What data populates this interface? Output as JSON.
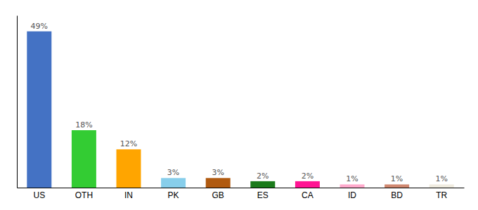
{
  "chart_data": {
    "type": "bar",
    "categories": [
      "US",
      "OTH",
      "IN",
      "PK",
      "GB",
      "ES",
      "CA",
      "ID",
      "BD",
      "TR"
    ],
    "values": [
      49,
      18,
      12,
      3,
      3,
      2,
      2,
      1,
      1,
      1
    ],
    "value_labels": [
      "49%",
      "18%",
      "12%",
      "3%",
      "3%",
      "2%",
      "2%",
      "1%",
      "1%",
      "1%"
    ],
    "colors": [
      "#4472c4",
      "#33cc33",
      "#ffa500",
      "#87ceeb",
      "#b05a10",
      "#1a7a1a",
      "#ff1493",
      "#ffaacc",
      "#d08870",
      "#f0ece0"
    ],
    "ylim": [
      0,
      54
    ],
    "data_labels": true,
    "tick_labels": "x",
    "grid": false
  }
}
